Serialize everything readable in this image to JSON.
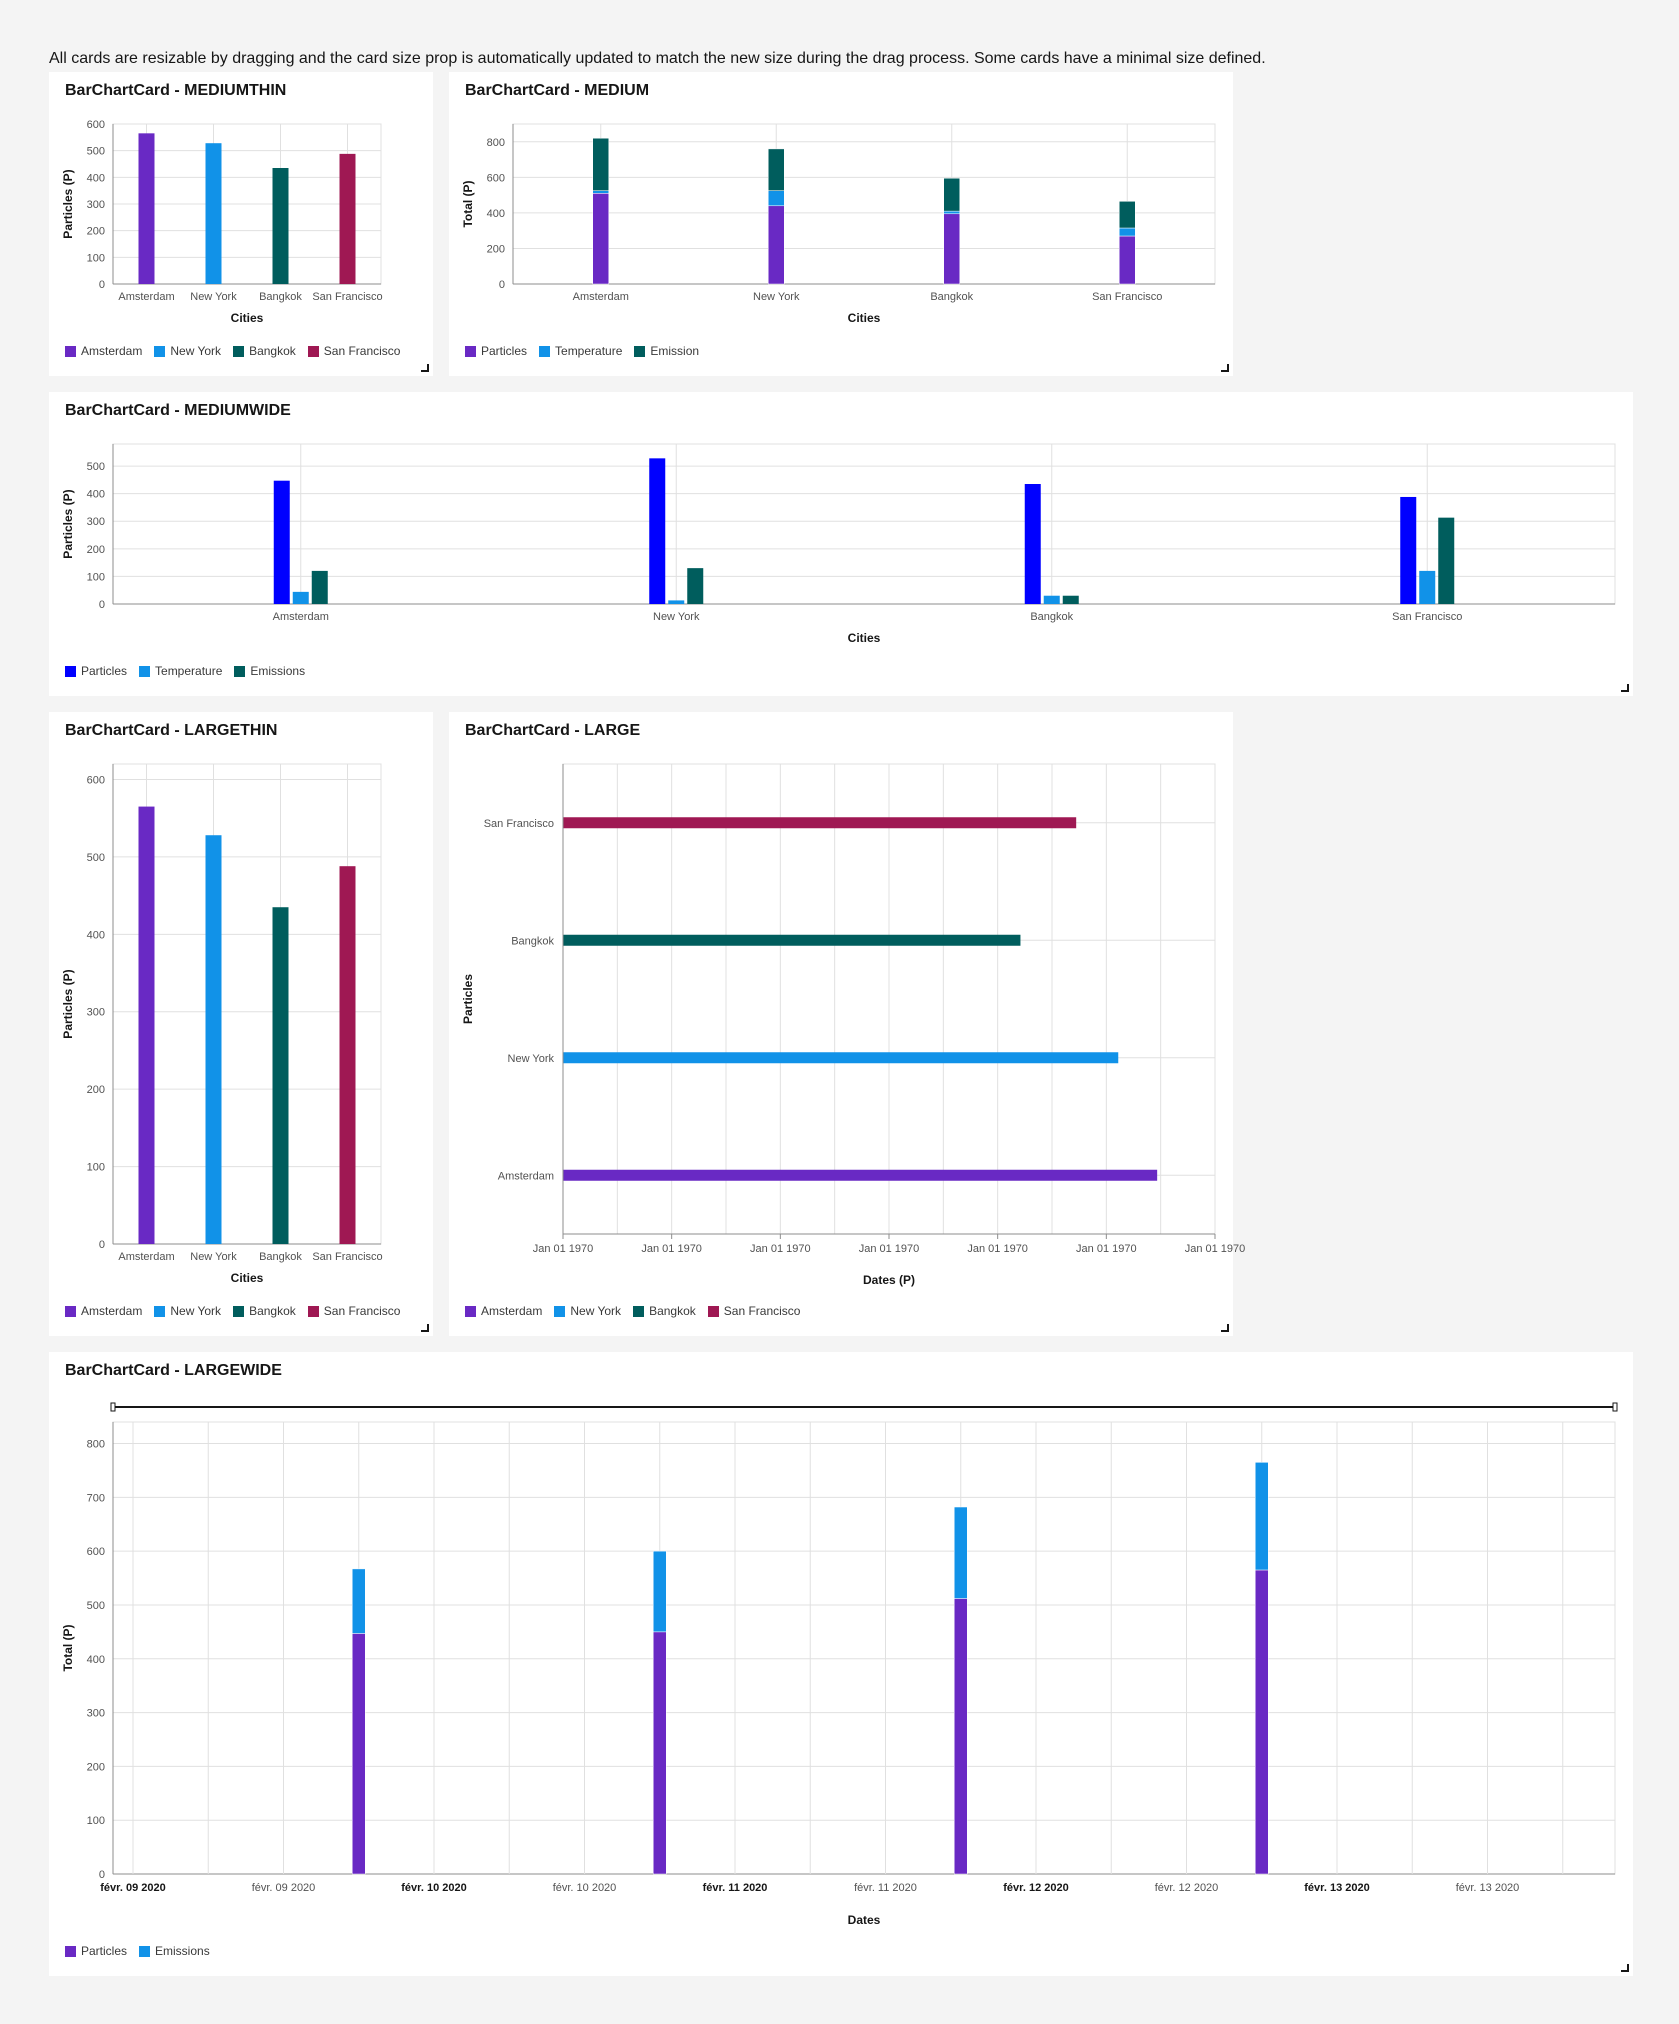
{
  "intro": "All cards are resizable by dragging and the card size prop is automatically updated to match the new size during the drag process. Some cards have a minimal size defined.",
  "colors": {
    "purple": "#6929c4",
    "cyan": "#1192e8",
    "teal": "#005d5d",
    "magenta": "#9f1853",
    "blue": "#0000ff"
  },
  "chart_data": [
    {
      "id": "mediumthin",
      "title": "BarChartCard - MEDIUMTHIN",
      "type": "bar",
      "orientation": "vertical",
      "categories": [
        "Amsterdam",
        "New York",
        "Bangkok",
        "San Francisco"
      ],
      "values": [
        565,
        528,
        435,
        488
      ],
      "category_colors": [
        "#6929c4",
        "#1192e8",
        "#005d5d",
        "#9f1853"
      ],
      "xlabel": "Cities",
      "ylabel": "Particles (P)",
      "ylim": [
        0,
        600
      ],
      "yticks": [
        0,
        100,
        200,
        300,
        400,
        500,
        600
      ],
      "legend": [
        {
          "label": "Amsterdam",
          "color": "#6929c4"
        },
        {
          "label": "New York",
          "color": "#1192e8"
        },
        {
          "label": "Bangkok",
          "color": "#005d5d"
        },
        {
          "label": "San Francisco",
          "color": "#9f1853"
        }
      ],
      "grid": true
    },
    {
      "id": "medium",
      "title": "BarChartCard - MEDIUM",
      "type": "bar",
      "stacked": true,
      "categories": [
        "Amsterdam",
        "New York",
        "Bangkok",
        "San Francisco"
      ],
      "series": [
        {
          "name": "Particles",
          "color": "#6929c4",
          "values": [
            510,
            440,
            395,
            270
          ]
        },
        {
          "name": "Temperature",
          "color": "#1192e8",
          "values": [
            15,
            85,
            15,
            45
          ]
        },
        {
          "name": "Emission",
          "color": "#005d5d",
          "values": [
            295,
            235,
            185,
            150
          ]
        }
      ],
      "xlabel": "Cities",
      "ylabel": "Total (P)",
      "ylim": [
        0,
        900
      ],
      "yticks": [
        0,
        200,
        400,
        600,
        800
      ],
      "legend_position": "bottom-left",
      "grid": true
    },
    {
      "id": "mediumwide",
      "title": "BarChartCard - MEDIUMWIDE",
      "type": "bar",
      "grouped": true,
      "categories": [
        "Amsterdam",
        "New York",
        "Bangkok",
        "San Francisco"
      ],
      "series": [
        {
          "name": "Particles",
          "color": "#0000ff",
          "values": [
            447,
            528,
            435,
            388
          ]
        },
        {
          "name": "Temperature",
          "color": "#1192e8",
          "values": [
            44,
            13,
            30,
            120
          ]
        },
        {
          "name": "Emissions",
          "color": "#005d5d",
          "values": [
            120,
            130,
            30,
            313
          ]
        }
      ],
      "xlabel": "Cities",
      "ylabel": "Particles (P)",
      "ylim": [
        0,
        580
      ],
      "yticks": [
        0,
        100,
        200,
        300,
        400,
        500
      ],
      "legend_position": "bottom-left",
      "grid": true
    },
    {
      "id": "largethin",
      "title": "BarChartCard - LARGETHIN",
      "type": "bar",
      "orientation": "vertical",
      "categories": [
        "Amsterdam",
        "New York",
        "Bangkok",
        "San Francisco"
      ],
      "values": [
        565,
        528,
        435,
        488
      ],
      "category_colors": [
        "#6929c4",
        "#1192e8",
        "#005d5d",
        "#9f1853"
      ],
      "xlabel": "Cities",
      "ylabel": "Particles (P)",
      "ylim": [
        0,
        620
      ],
      "yticks": [
        0,
        100,
        200,
        300,
        400,
        500,
        600
      ],
      "legend": [
        {
          "label": "Amsterdam",
          "color": "#6929c4"
        },
        {
          "label": "New York",
          "color": "#1192e8"
        },
        {
          "label": "Bangkok",
          "color": "#005d5d"
        },
        {
          "label": "San Francisco",
          "color": "#9f1853"
        }
      ],
      "grid": true
    },
    {
      "id": "large",
      "title": "BarChartCard - LARGE",
      "type": "bar",
      "orientation": "horizontal",
      "categories": [
        "Amsterdam",
        "New York",
        "Bangkok",
        "San Francisco"
      ],
      "values": [
        565,
        528,
        435,
        488
      ],
      "category_colors": [
        "#6929c4",
        "#1192e8",
        "#005d5d",
        "#9f1853"
      ],
      "xticks": [
        "Jan 01 1970",
        "Jan 01 1970",
        "Jan 01 1970",
        "Jan 01 1970",
        "Jan 01 1970",
        "Jan 01 1970",
        "Jan 01 1970"
      ],
      "xlim": [
        0,
        620
      ],
      "xlabel": "Dates (P)",
      "ylabel": "Particles",
      "legend": [
        {
          "label": "Amsterdam",
          "color": "#6929c4"
        },
        {
          "label": "New York",
          "color": "#1192e8"
        },
        {
          "label": "Bangkok",
          "color": "#005d5d"
        },
        {
          "label": "San Francisco",
          "color": "#9f1853"
        }
      ],
      "grid": true
    },
    {
      "id": "largewide",
      "title": "BarChartCard - LARGEWIDE",
      "type": "bar",
      "stacked": true,
      "x_type": "time",
      "xticks": [
        {
          "label": "févr. 09 2020",
          "bold": true
        },
        {
          "label": "févr. 09 2020",
          "bold": false
        },
        {
          "label": "févr. 10 2020",
          "bold": true
        },
        {
          "label": "févr. 10 2020",
          "bold": false
        },
        {
          "label": "févr. 11 2020",
          "bold": true
        },
        {
          "label": "févr. 11 2020",
          "bold": false
        },
        {
          "label": "févr. 12 2020",
          "bold": true
        },
        {
          "label": "févr. 12 2020",
          "bold": false
        },
        {
          "label": "févr. 13 2020",
          "bold": true
        },
        {
          "label": "févr. 13 2020",
          "bold": false
        }
      ],
      "x": [
        "2020-02-09 18:00",
        "2020-02-10 18:00",
        "2020-02-11 18:00",
        "2020-02-12 18:00"
      ],
      "series": [
        {
          "name": "Particles",
          "color": "#6929c4",
          "values": [
            447,
            450,
            512,
            565
          ]
        },
        {
          "name": "Emissions",
          "color": "#1192e8",
          "values": [
            120,
            150,
            170,
            200
          ]
        }
      ],
      "xlabel": "Dates",
      "ylabel": "Total (P)",
      "ylim": [
        0,
        840
      ],
      "yticks": [
        0,
        100,
        200,
        300,
        400,
        500,
        600,
        700,
        800
      ],
      "legend_position": "bottom-left",
      "zoom_bar": true,
      "grid": true
    }
  ]
}
